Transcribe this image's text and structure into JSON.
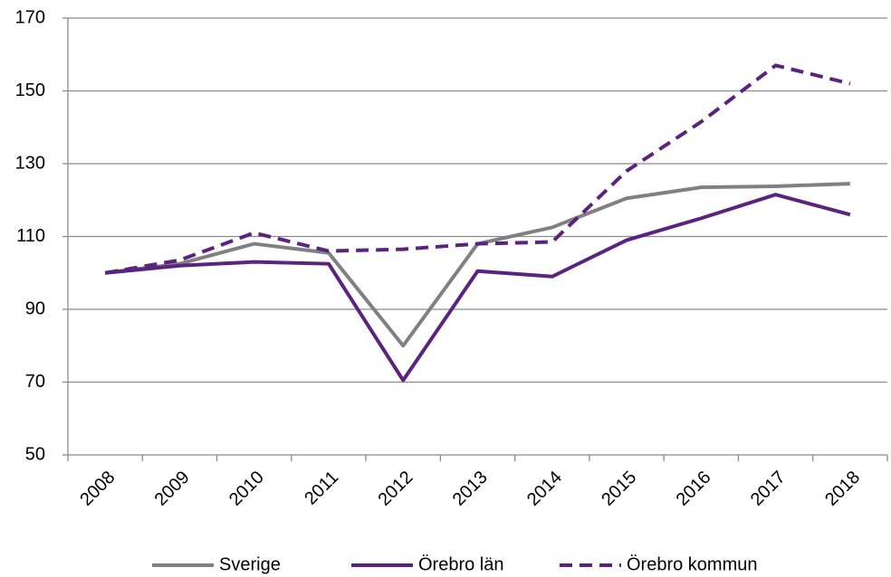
{
  "chart_data": {
    "type": "line",
    "categories": [
      "2008",
      "2009",
      "2010",
      "2011",
      "2012",
      "2013",
      "2014",
      "2015",
      "2016",
      "2017",
      "2018"
    ],
    "series": [
      {
        "name": "Sverige",
        "color": "#808080",
        "dash": false,
        "values": [
          100,
          102.5,
          108,
          105.5,
          80,
          108,
          112.5,
          120.5,
          123.5,
          123.8,
          124.5
        ]
      },
      {
        "name": "Örebro län",
        "color": "#5b2380",
        "dash": false,
        "values": [
          100,
          102,
          103,
          102.5,
          70.5,
          100.5,
          99,
          109,
          115,
          121.5,
          116
        ]
      },
      {
        "name": "Örebro kommun",
        "color": "#5b2380",
        "dash": true,
        "values": [
          100,
          103.5,
          111,
          106,
          106.5,
          108,
          108.5,
          128,
          141.5,
          157,
          152
        ]
      }
    ],
    "ylim": [
      50,
      170
    ],
    "yticks": [
      50,
      70,
      90,
      110,
      130,
      150,
      170
    ],
    "grid": true,
    "legend": "bottom"
  }
}
